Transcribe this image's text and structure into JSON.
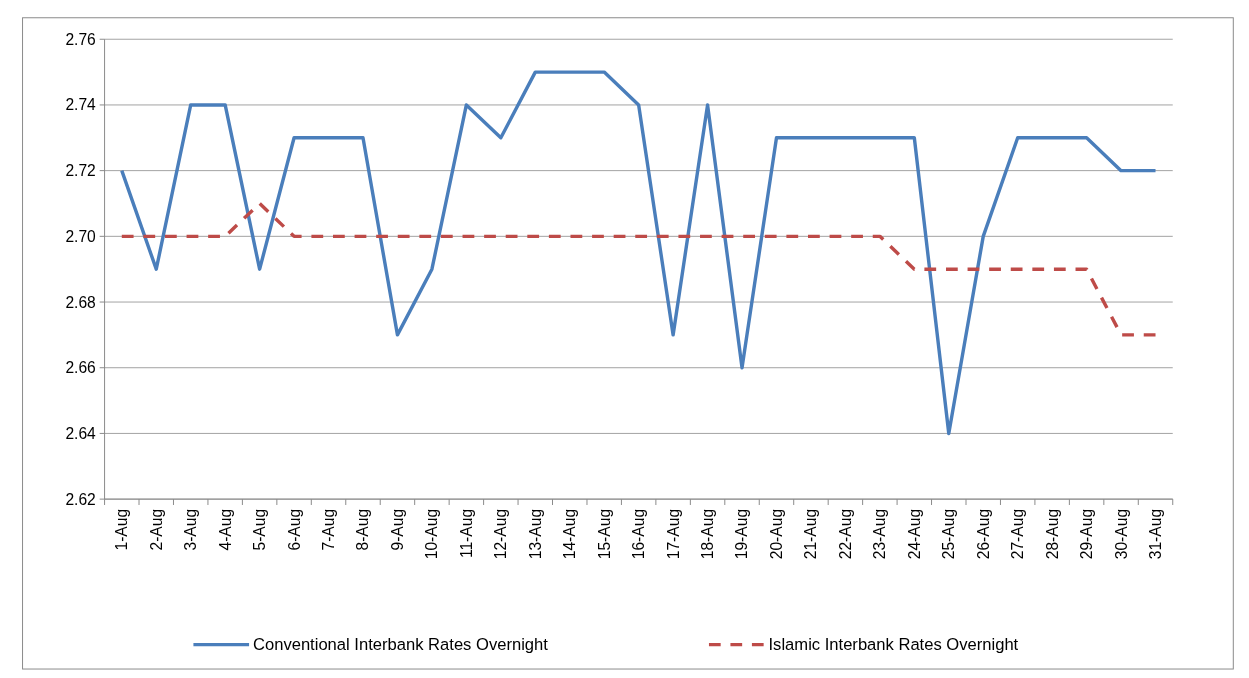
{
  "chart_data": {
    "type": "line",
    "categories": [
      "1-Aug",
      "2-Aug",
      "3-Aug",
      "4-Aug",
      "5-Aug",
      "6-Aug",
      "7-Aug",
      "8-Aug",
      "9-Aug",
      "10-Aug",
      "11-Aug",
      "12-Aug",
      "13-Aug",
      "14-Aug",
      "15-Aug",
      "16-Aug",
      "17-Aug",
      "18-Aug",
      "19-Aug",
      "20-Aug",
      "21-Aug",
      "22-Aug",
      "23-Aug",
      "24-Aug",
      "25-Aug",
      "26-Aug",
      "27-Aug",
      "28-Aug",
      "29-Aug",
      "30-Aug",
      "31-Aug"
    ],
    "series": [
      {
        "name": "Conventional Interbank Rates Overnight",
        "color": "#4a7ebb",
        "line_style": "solid",
        "values": [
          2.72,
          2.69,
          2.74,
          2.74,
          2.69,
          2.73,
          2.73,
          2.73,
          2.67,
          2.69,
          2.74,
          2.73,
          2.75,
          2.75,
          2.75,
          2.74,
          2.67,
          2.74,
          2.66,
          2.73,
          2.73,
          2.73,
          2.73,
          2.73,
          2.64,
          2.7,
          2.73,
          2.73,
          2.73,
          2.72,
          2.72
        ]
      },
      {
        "name": "Islamic Interbank Rates Overnight",
        "color": "#be4b48",
        "line_style": "dashed",
        "values": [
          2.7,
          2.7,
          2.7,
          2.7,
          2.71,
          2.7,
          2.7,
          2.7,
          2.7,
          2.7,
          2.7,
          2.7,
          2.7,
          2.7,
          2.7,
          2.7,
          2.7,
          2.7,
          2.7,
          2.7,
          2.7,
          2.7,
          2.7,
          2.69,
          2.69,
          2.69,
          2.69,
          2.69,
          2.69,
          2.67,
          2.67
        ]
      }
    ],
    "ylim": [
      2.62,
      2.76
    ],
    "yticks": [
      {
        "value": 2.62,
        "label": "2.62"
      },
      {
        "value": 2.64,
        "label": "2.64"
      },
      {
        "value": 2.66,
        "label": "2.66"
      },
      {
        "value": 2.68,
        "label": "2.68"
      },
      {
        "value": 2.7,
        "label": "2.70"
      },
      {
        "value": 2.72,
        "label": "2.72"
      },
      {
        "value": 2.74,
        "label": "2.74"
      },
      {
        "value": 2.76,
        "label": "2.76"
      }
    ],
    "grid": "y",
    "legend": "bottom",
    "marker": "none"
  }
}
